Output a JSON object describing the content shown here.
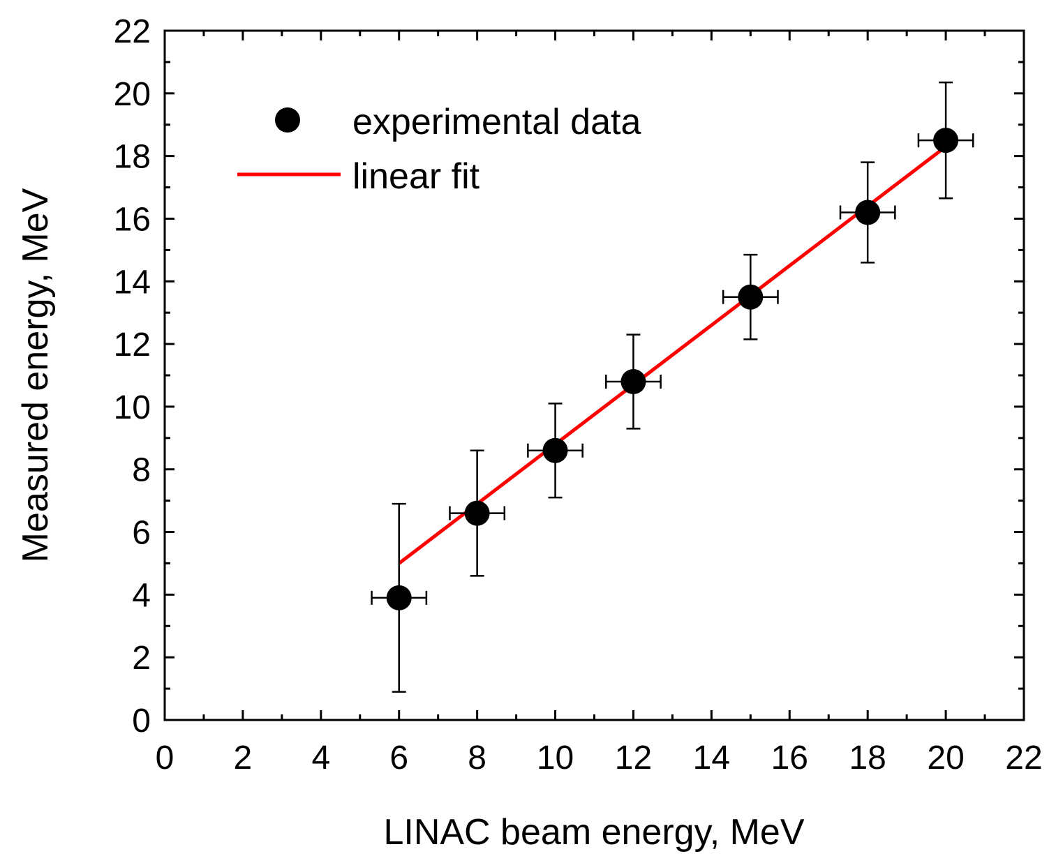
{
  "chart_data": {
    "type": "scatter",
    "xlabel": "LINAC beam energy, MeV",
    "ylabel": "Measured energy, MeV",
    "xlim": [
      0,
      22
    ],
    "ylim": [
      0,
      22
    ],
    "xticks": [
      "0",
      "2",
      "4",
      "6",
      "8",
      "10",
      "12",
      "14",
      "16",
      "18",
      "20",
      "22"
    ],
    "yticks": [
      "0",
      "2",
      "4",
      "6",
      "8",
      "10",
      "12",
      "14",
      "16",
      "18",
      "20",
      "22"
    ],
    "grid": false,
    "legend_position": "top-left",
    "series": [
      {
        "name": "experimental data",
        "kind": "points-with-errorbars",
        "color": "#000000",
        "x": [
          6,
          8,
          10,
          12,
          15,
          18,
          20
        ],
        "y": [
          3.9,
          6.6,
          8.6,
          10.8,
          13.5,
          16.2,
          18.5
        ],
        "yerr_low": [
          0.9,
          4.6,
          7.1,
          9.3,
          12.15,
          14.6,
          16.65
        ],
        "yerr_high": [
          6.9,
          8.6,
          10.1,
          12.3,
          14.85,
          17.8,
          20.35
        ],
        "xerr": [
          0.7,
          0.7,
          0.7,
          0.7,
          0.7,
          0.7,
          0.7
        ]
      },
      {
        "name": "linear fit",
        "kind": "line",
        "color": "#ff0000",
        "x": [
          6,
          20
        ],
        "y": [
          5.0,
          18.3
        ]
      }
    ]
  }
}
